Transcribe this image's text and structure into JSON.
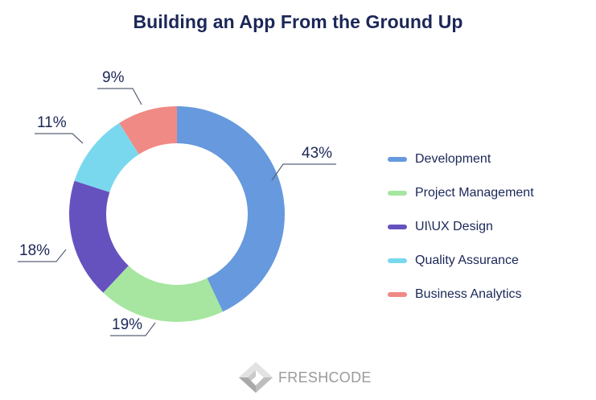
{
  "chart_data": {
    "type": "pie",
    "subtype": "donut",
    "title": "Building an App From the Ground Up",
    "categories": [
      "Development",
      "Project Management",
      "UI\\UX Design",
      "Quality Assurance",
      "Business Analytics"
    ],
    "values": [
      43,
      19,
      18,
      11,
      9
    ],
    "unit": "%",
    "colors": [
      "#6699dd",
      "#a6e6a0",
      "#6652bf",
      "#7ad8ee",
      "#f08a84"
    ],
    "labels": [
      "43%",
      "19%",
      "18%",
      "11%",
      "9%"
    ],
    "legend_position": "right",
    "start_angle": "12 o'clock, clockwise"
  },
  "title": "Building an App From the Ground Up",
  "legend": {
    "items": [
      {
        "label": "Development",
        "color": "#6699dd"
      },
      {
        "label": "Project Management",
        "color": "#a6e6a0"
      },
      {
        "label": "UI\\UX Design",
        "color": "#6652bf"
      },
      {
        "label": "Quality Assurance",
        "color": "#7ad8ee"
      },
      {
        "label": "Business Analytics",
        "color": "#f08a84"
      }
    ]
  },
  "data_labels": {
    "development": "43%",
    "project_management": "19%",
    "uiux_design": "18%",
    "quality_assurance": "11%",
    "business_analytics": "9%"
  },
  "logo": {
    "text": "FRESHCODE",
    "icon": "freshcode-diamond-logo-icon"
  }
}
